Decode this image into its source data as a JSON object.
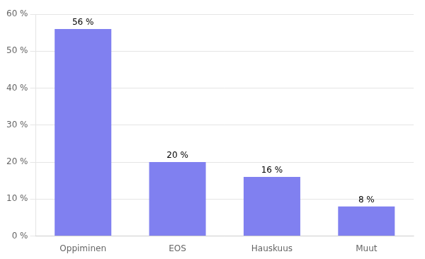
{
  "chart_data": {
    "type": "bar",
    "categories": [
      "Oppiminen",
      "EOS",
      "Hauskuus",
      "Muut"
    ],
    "values": [
      56,
      20,
      16,
      8
    ],
    "value_labels": [
      "56 %",
      "20 %",
      "16 %",
      "8 %"
    ],
    "data_labels": true,
    "color": "#8080f0",
    "ylim": [
      0,
      60
    ],
    "yticks": [
      {
        "value": 0,
        "label": "0 %"
      },
      {
        "value": 10,
        "label": "10 %"
      },
      {
        "value": 20,
        "label": "20 %"
      },
      {
        "value": 30,
        "label": "30 %"
      },
      {
        "value": 40,
        "label": "40 %"
      },
      {
        "value": 50,
        "label": "50 %"
      },
      {
        "value": 60,
        "label": "60 %"
      }
    ],
    "grid": true
  }
}
